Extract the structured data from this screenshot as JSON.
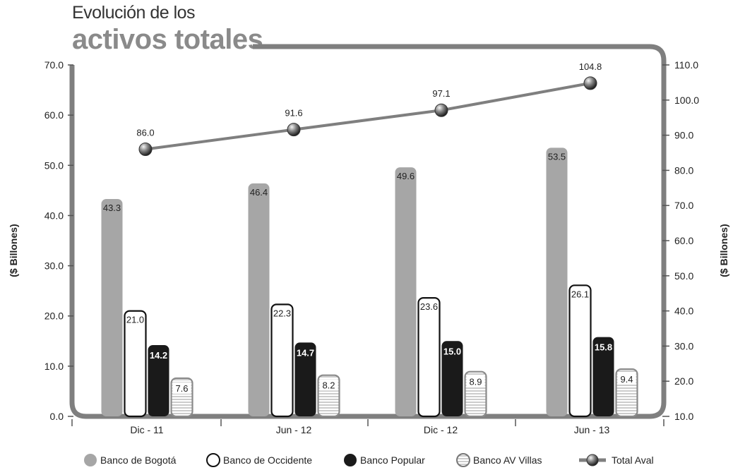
{
  "title": {
    "line1": "Evolución de los",
    "line2": "activos totales"
  },
  "chart_data": {
    "type": "bar",
    "categories": [
      "Dic - 11",
      "Jun - 12",
      "Dic - 12",
      "Jun - 13"
    ],
    "series": [
      {
        "name": "Banco de Bogotá",
        "values": [
          43.3,
          46.4,
          49.6,
          53.5
        ],
        "color": "#a6a6a6",
        "style": "solid-gray"
      },
      {
        "name": "Banco de Occidente",
        "values": [
          21.0,
          22.3,
          23.6,
          26.1
        ],
        "color": "#ffffff",
        "style": "outline"
      },
      {
        "name": "Banco Popular",
        "values": [
          14.2,
          14.7,
          15.0,
          15.8
        ],
        "color": "#1a1a1a",
        "style": "solid-black"
      },
      {
        "name": "Banco AV Villas",
        "values": [
          7.6,
          8.2,
          8.9,
          9.4
        ],
        "color": "#ffffff",
        "style": "striped"
      }
    ],
    "line_series": {
      "name": "Total Aval",
      "values": [
        86.0,
        91.6,
        97.1,
        104.8
      ],
      "color": "#7f7f7f",
      "axis": "right"
    },
    "value_labels": {
      "bars": [
        [
          "43.3",
          "46.4",
          "49.6",
          "53.5"
        ],
        [
          "21.0",
          "22.3",
          "23.6",
          "26.1"
        ],
        [
          "14.2",
          "14.7",
          "15.0",
          "15.8"
        ],
        [
          "7.6",
          "8.2",
          "8.9",
          "9.4"
        ]
      ],
      "line": [
        "86.0",
        "91.6",
        "97.1",
        "104.8"
      ]
    },
    "ylabel": "($ Billones)",
    "y2label": "($ Billones)",
    "ylim": [
      0,
      70
    ],
    "y2lim": [
      10,
      110
    ],
    "yticks": [
      "0.0",
      "10.0",
      "20.0",
      "30.0",
      "40.0",
      "50.0",
      "60.0",
      "70.0"
    ],
    "y2ticks": [
      "10.0",
      "20.0",
      "30.0",
      "40.0",
      "50.0",
      "60.0",
      "70.0",
      "80.0",
      "90.0",
      "100.0",
      "110.0"
    ],
    "grid": false,
    "legend": "bottom"
  }
}
